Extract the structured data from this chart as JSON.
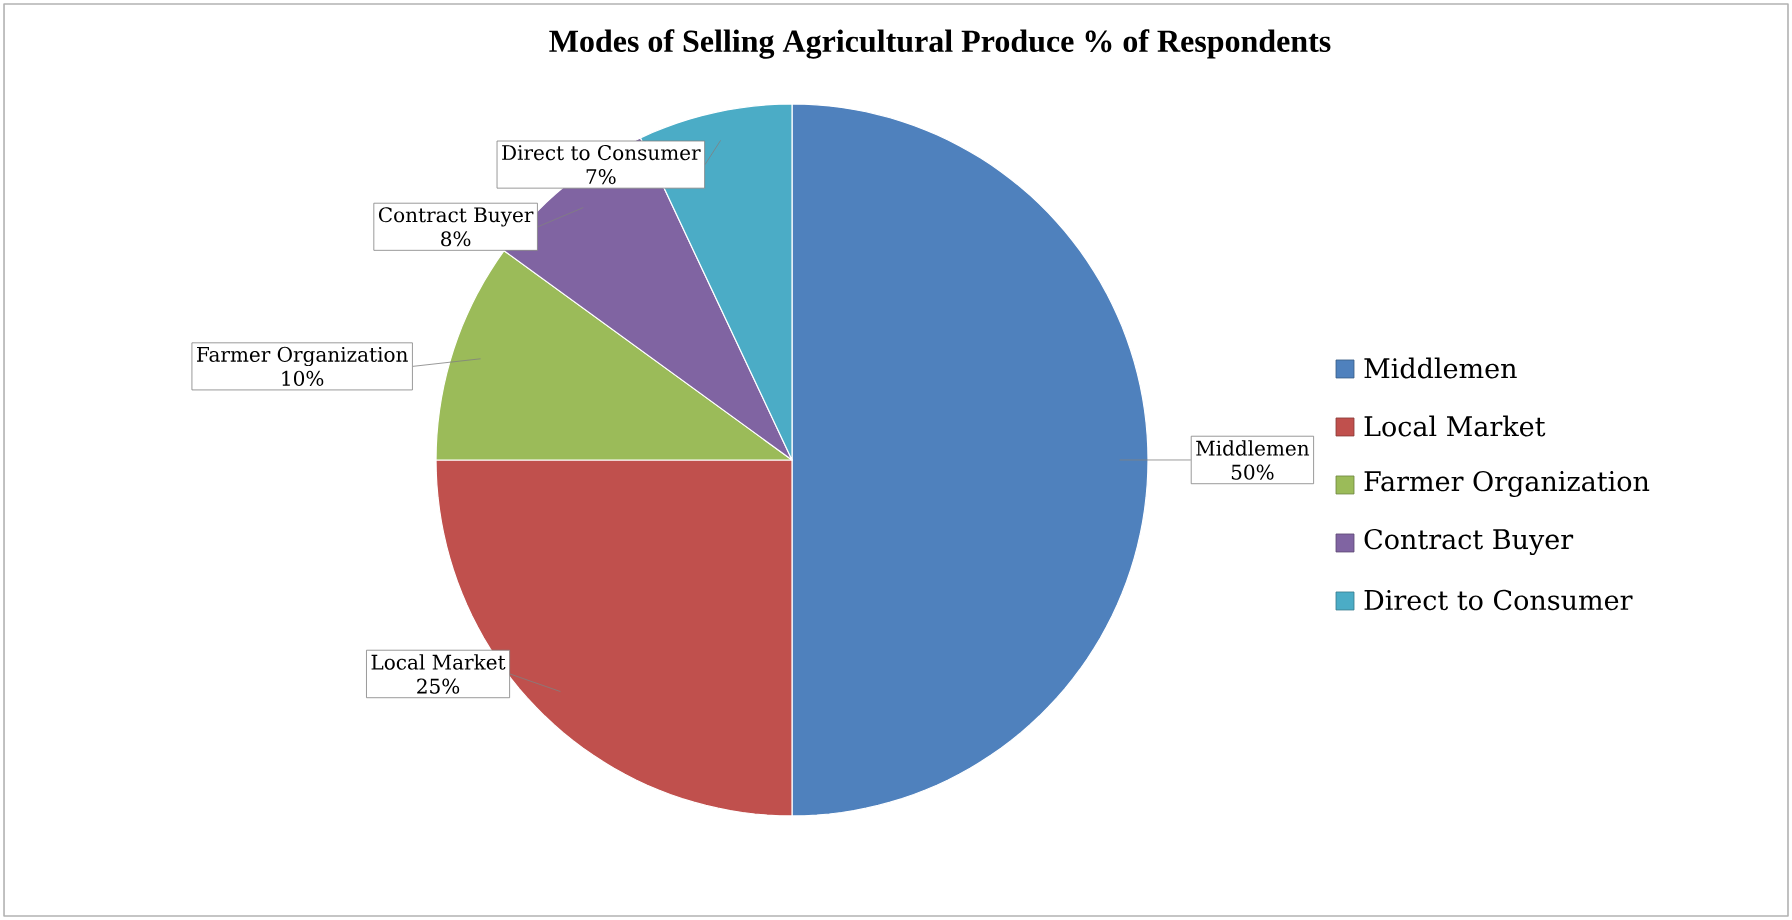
{
  "chart_data": {
    "type": "pie",
    "title": "Modes of Selling Agricultural Produce % of Respondents",
    "categories": [
      "Middlemen",
      "Local Market",
      "Farmer Organization",
      "Contract Buyer",
      "Direct to Consumer"
    ],
    "values": [
      50,
      25,
      10,
      8,
      7
    ],
    "value_labels": [
      "50%",
      "25%",
      "10%",
      "8%",
      "7%"
    ],
    "colors": [
      "#4f81bd",
      "#c0504d",
      "#9bbb59",
      "#8064a2",
      "#4bacc6"
    ],
    "legend": "right"
  }
}
